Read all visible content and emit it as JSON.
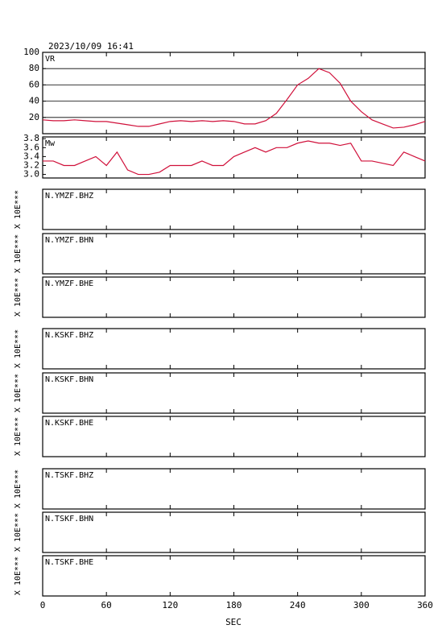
{
  "timestamp": "2023/10/09 16:41",
  "x_axis": {
    "xlim": [
      0,
      360
    ],
    "xticks": [
      0,
      60,
      120,
      180,
      240,
      300,
      360
    ],
    "xlabel": "SEC"
  },
  "chart_data": [
    {
      "type": "line",
      "title": "VR",
      "ylim": [
        0,
        100
      ],
      "yticks": [
        20,
        40,
        60,
        80,
        100
      ],
      "grid": true,
      "x": [
        0,
        10,
        20,
        30,
        40,
        50,
        60,
        70,
        80,
        90,
        100,
        110,
        120,
        130,
        140,
        150,
        160,
        170,
        180,
        190,
        200,
        210,
        220,
        230,
        240,
        250,
        260,
        270,
        280,
        290,
        300,
        310,
        320,
        330,
        340,
        350,
        360
      ],
      "series": [
        {
          "color": "#d0103a",
          "values": [
            17,
            16,
            16,
            17,
            16,
            15,
            15,
            13,
            11,
            9,
            9,
            12,
            15,
            16,
            15,
            16,
            15,
            16,
            15,
            12,
            12,
            16,
            25,
            42,
            60,
            68,
            80,
            75,
            62,
            40,
            27,
            17,
            12,
            7,
            8,
            11,
            15
          ]
        }
      ]
    },
    {
      "type": "line",
      "title": "Mw",
      "ylim": [
        2.92,
        3.84
      ],
      "yticks": [
        {
          "value": 3,
          "label": "3.0"
        },
        3.2,
        3.4,
        3.6,
        3.8
      ],
      "grid": false,
      "x": [
        0,
        10,
        20,
        30,
        40,
        50,
        60,
        70,
        80,
        90,
        100,
        110,
        120,
        130,
        140,
        150,
        160,
        170,
        180,
        190,
        200,
        210,
        220,
        230,
        240,
        250,
        260,
        270,
        280,
        290,
        300,
        310,
        320,
        330,
        340,
        350,
        360
      ],
      "series": [
        {
          "color": "#d0103a",
          "values": [
            3.3,
            3.3,
            3.2,
            3.2,
            3.3,
            3.4,
            3.2,
            3.5,
            3.1,
            3.0,
            3.0,
            3.05,
            3.2,
            3.2,
            3.2,
            3.3,
            3.2,
            3.2,
            3.4,
            3.5,
            3.6,
            3.5,
            3.6,
            3.6,
            3.7,
            3.75,
            3.7,
            3.7,
            3.65,
            3.7,
            3.3,
            3.3,
            3.25,
            3.2,
            3.5,
            3.4,
            3.3
          ]
        }
      ]
    },
    {
      "type": "trace",
      "title": "N.YMZF.BHZ",
      "ylabel": "X 10E***"
    },
    {
      "type": "trace",
      "title": "N.YMZF.BHN",
      "ylabel": "X 10E***"
    },
    {
      "type": "trace",
      "title": "N.YMZF.BHE",
      "ylabel": "X 10E***"
    },
    {
      "type": "trace",
      "title": "N.KSKF.BHZ",
      "ylabel": "X 10E***"
    },
    {
      "type": "trace",
      "title": "N.KSKF.BHN",
      "ylabel": "X 10E***"
    },
    {
      "type": "trace",
      "title": "N.KSKF.BHE",
      "ylabel": "X 10E***"
    },
    {
      "type": "trace",
      "title": "N.TSKF.BHZ",
      "ylabel": "X 10E***"
    },
    {
      "type": "trace",
      "title": "N.TSKF.BHN",
      "ylabel": "X 10E***"
    },
    {
      "type": "trace",
      "title": "N.TSKF.BHE",
      "ylabel": "X 10E***"
    }
  ]
}
